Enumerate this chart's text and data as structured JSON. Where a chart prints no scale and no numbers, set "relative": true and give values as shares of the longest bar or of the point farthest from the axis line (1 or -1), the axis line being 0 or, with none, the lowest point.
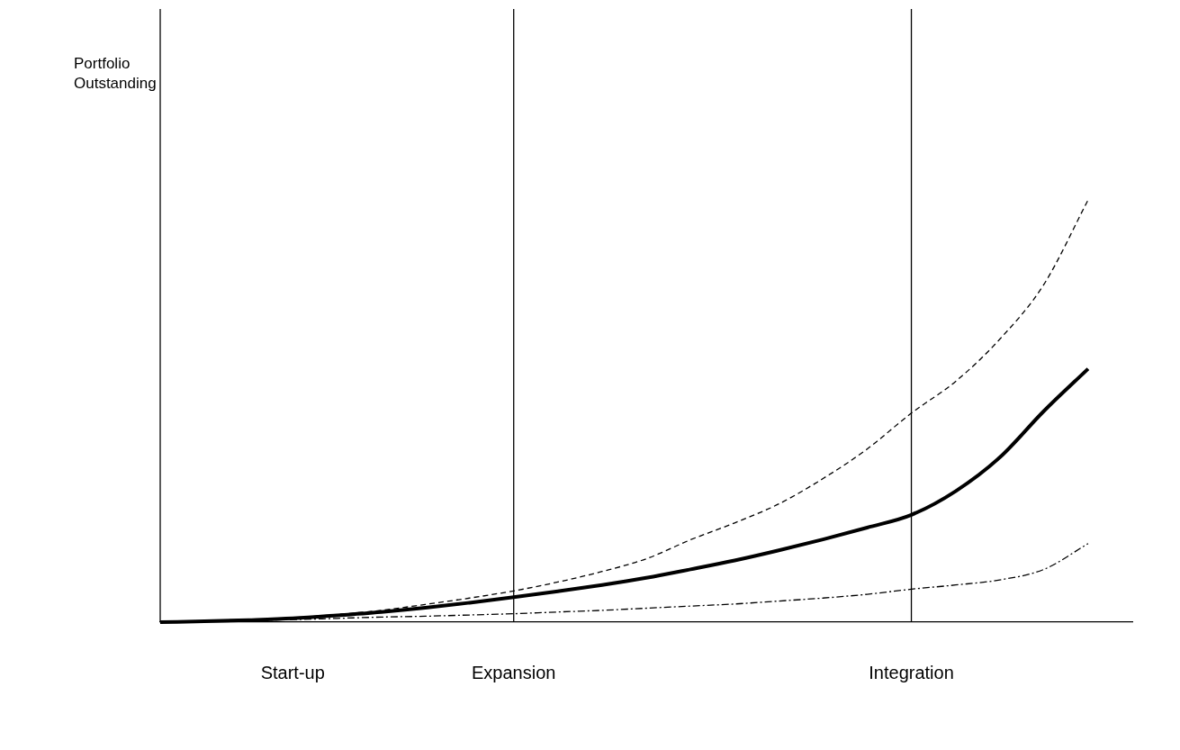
{
  "chart_data": {
    "type": "line",
    "annotations": [
      "Portfolio Outstanding"
    ],
    "relative": true,
    "grid": false,
    "legend": false,
    "marker": "none",
    "categories": [
      null,
      null,
      null,
      "Start-up",
      null,
      null,
      null,
      null,
      "Expansion",
      null,
      null,
      null,
      null,
      null,
      null,
      null,
      null,
      "Integration",
      null,
      null,
      null,
      null,
      null
    ],
    "series": [
      {
        "color": "#000000",
        "line_style": "solid",
        "values": [
          0,
          0.002,
          0.005,
          0.009,
          0.016,
          0.024,
          0.034,
          0.046,
          0.059,
          0.073,
          0.088,
          0.105,
          0.125,
          0.146,
          0.17,
          0.196,
          0.224,
          0.254,
          0.31,
          0.39,
          0.5,
          0.6,
          null
        ]
      },
      {
        "color": "#000000",
        "line_style": "dashed",
        "values": [
          0,
          0.002,
          0.005,
          0.01,
          0.018,
          0.028,
          0.042,
          0.057,
          0.074,
          0.095,
          0.12,
          0.15,
          0.195,
          0.235,
          0.28,
          0.34,
          0.41,
          0.495,
          0.57,
          0.67,
          0.8,
          1.0,
          null
        ]
      },
      {
        "color": "#000000",
        "line_style": "dashdot",
        "values": [
          0,
          0.002,
          0.004,
          0.006,
          0.009,
          0.012,
          0.014,
          0.017,
          0.02,
          0.024,
          0.028,
          0.033,
          0.038,
          0.043,
          0.05,
          0.057,
          0.066,
          0.078,
          0.088,
          0.1,
          0.125,
          0.186,
          null
        ]
      }
    ],
    "ref_lines": [
      {
        "axis": "x",
        "value": "Expansion",
        "color": "#000000"
      },
      {
        "axis": "x",
        "value": "Integration",
        "color": "#000000"
      }
    ]
  }
}
